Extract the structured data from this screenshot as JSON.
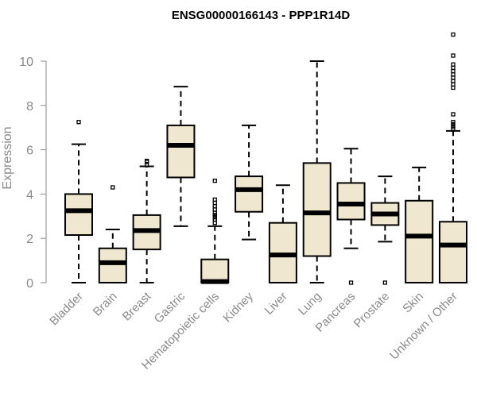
{
  "colors": {
    "box_fill": "#efe7cf",
    "stroke": "#000000",
    "axis": "#8a8a8a",
    "text": "#8a8a8a"
  },
  "chart_data": {
    "type": "boxplot",
    "title": "ENSG00000166143 - PPP1R14D",
    "xlabel": "",
    "ylabel": "Expression",
    "ylim": [
      0,
      11.5
    ],
    "yticks": [
      0,
      2,
      4,
      6,
      8,
      10
    ],
    "grid": false,
    "categories": [
      "Bladder",
      "Brain",
      "Breast",
      "Gastric",
      "Hematopoietic cells",
      "Kidney",
      "Liver",
      "Lung",
      "Pancreas",
      "Prostate",
      "Skin",
      "Unknown / Other"
    ],
    "boxes": [
      {
        "category": "Bladder",
        "whisker_low": 0.0,
        "q1": 2.15,
        "median": 3.25,
        "q3": 4.0,
        "whisker_high": 6.25,
        "outliers": [
          7.25
        ]
      },
      {
        "category": "Brain",
        "whisker_low": 0.0,
        "q1": 0.0,
        "median": 0.9,
        "q3": 1.55,
        "whisker_high": 2.4,
        "outliers": [
          4.3
        ]
      },
      {
        "category": "Breast",
        "whisker_low": 0.0,
        "q1": 1.5,
        "median": 2.35,
        "q3": 3.05,
        "whisker_high": 5.25,
        "outliers": [
          5.3,
          5.45,
          5.5
        ]
      },
      {
        "category": "Gastric",
        "whisker_low": 2.55,
        "q1": 4.75,
        "median": 6.2,
        "q3": 7.1,
        "whisker_high": 8.85,
        "outliers": []
      },
      {
        "category": "Hematopoietic cells",
        "whisker_low": 0.0,
        "q1": 0.0,
        "median": 0.05,
        "q3": 1.05,
        "whisker_high": 2.55,
        "outliers": [
          2.7,
          2.85,
          2.95,
          3.05,
          3.15,
          3.3,
          3.45,
          3.6,
          3.75,
          4.6
        ]
      },
      {
        "category": "Kidney",
        "whisker_low": 1.95,
        "q1": 3.2,
        "median": 4.2,
        "q3": 4.8,
        "whisker_high": 7.1,
        "outliers": []
      },
      {
        "category": "Liver",
        "whisker_low": 0.0,
        "q1": 0.0,
        "median": 1.25,
        "q3": 2.7,
        "whisker_high": 4.4,
        "outliers": []
      },
      {
        "category": "Lung",
        "whisker_low": 0.0,
        "q1": 1.2,
        "median": 3.15,
        "q3": 5.4,
        "whisker_high": 10.0,
        "outliers": []
      },
      {
        "category": "Pancreas",
        "whisker_low": 1.55,
        "q1": 2.85,
        "median": 3.55,
        "q3": 4.5,
        "whisker_high": 6.05,
        "outliers": [
          0.0
        ]
      },
      {
        "category": "Prostate",
        "whisker_low": 1.85,
        "q1": 2.6,
        "median": 3.1,
        "q3": 3.6,
        "whisker_high": 4.8,
        "outliers": [
          0.0
        ]
      },
      {
        "category": "Skin",
        "whisker_low": 0.0,
        "q1": 0.0,
        "median": 2.1,
        "q3": 3.7,
        "whisker_high": 5.2,
        "outliers": []
      },
      {
        "category": "Unknown / Other",
        "whisker_low": 0.0,
        "q1": 0.0,
        "median": 1.7,
        "q3": 2.75,
        "whisker_high": 6.85,
        "outliers": [
          6.95,
          7.05,
          7.15,
          7.25,
          7.6,
          8.8,
          8.95,
          9.1,
          9.25,
          9.4,
          9.55,
          9.7,
          9.85,
          10.25,
          11.2
        ]
      }
    ]
  }
}
